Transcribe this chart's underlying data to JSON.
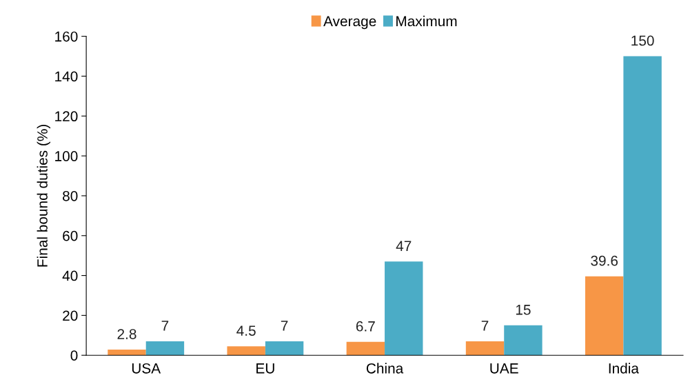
{
  "chart_data": {
    "type": "bar",
    "ylabel": "Final bound duties (%)",
    "categories": [
      "USA",
      "EU",
      "China",
      "UAE",
      "India"
    ],
    "series": [
      {
        "name": "Average",
        "color": "#f79646",
        "values": [
          2.8,
          4.5,
          6.7,
          7,
          39.6
        ]
      },
      {
        "name": "Maximum",
        "color": "#4bacc6",
        "values": [
          7,
          7,
          47,
          15,
          150
        ]
      }
    ],
    "ylim": [
      0,
      160
    ],
    "yticks": [
      0,
      20,
      40,
      60,
      80,
      100,
      120,
      140,
      160
    ],
    "data_labels": true,
    "legend": "top",
    "grid": false
  }
}
